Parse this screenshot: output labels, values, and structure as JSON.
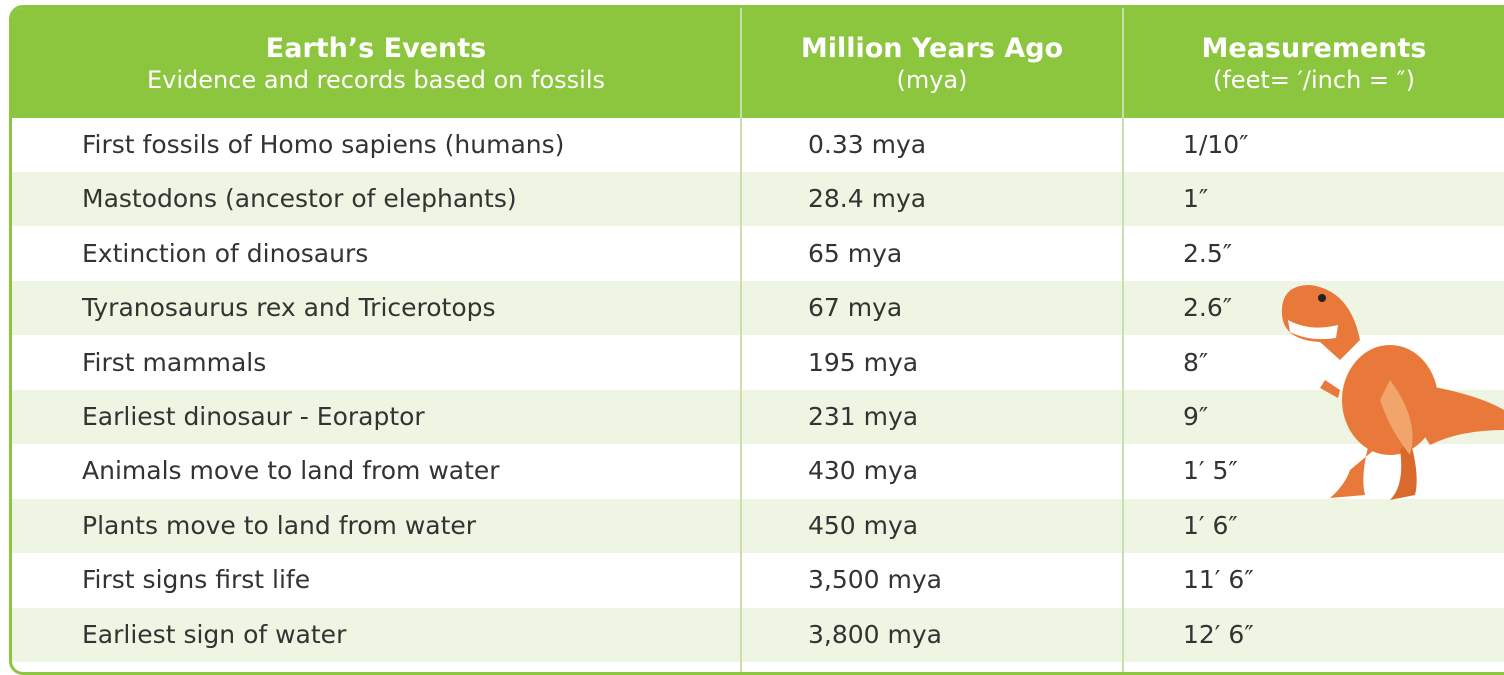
{
  "table": {
    "header": [
      {
        "title": "Earth’s Events",
        "subtitle": "Evidence and records based on fossils"
      },
      {
        "title": "Million Years Ago",
        "subtitle": "(mya)"
      },
      {
        "title": "Measurements",
        "subtitle": "(feet= ′/inch = ″)"
      }
    ],
    "rows": [
      [
        "First fossils of Homo sapiens (humans)",
        "0.33 mya",
        "1/10″"
      ],
      [
        "Mastodons (ancestor of elephants)",
        "28.4 mya",
        "1″"
      ],
      [
        "Extinction of dinosaurs",
        "65 mya",
        "2.5″"
      ],
      [
        "Tyranosaurus rex and Tricerotops",
        "67 mya",
        "2.6″"
      ],
      [
        "First mammals",
        "195 mya",
        "8″"
      ],
      [
        "Earliest dinosaur - Eoraptor",
        "231 mya",
        "9″"
      ],
      [
        "Animals move to land from water",
        "430 mya",
        "1′ 5″"
      ],
      [
        "Plants move to land from water",
        "450 mya",
        "1′ 6″"
      ],
      [
        "First signs first life",
        "3,500 mya",
        "11′ 6″"
      ],
      [
        "Earliest sign of water",
        "3,800 mya",
        "12′ 6″"
      ]
    ]
  }
}
